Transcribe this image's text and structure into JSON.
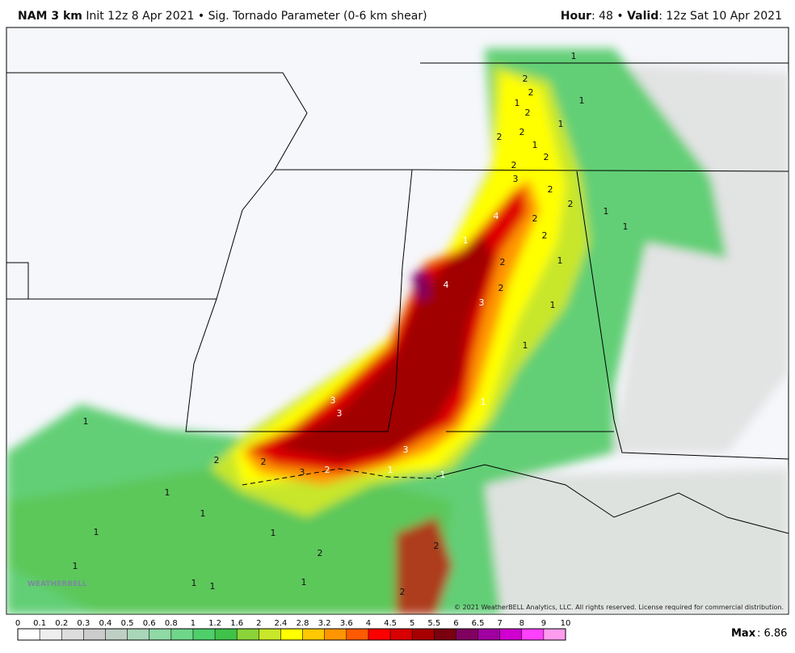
{
  "header": {
    "model": "NAM 3 km",
    "description": "Init 12z 8 Apr 2021 • Sig. Tornado Parameter (0-6 km shear)",
    "hour_label": "Hour",
    "hour_value": ": 48 • ",
    "valid_label": "Valid",
    "valid_value": ": 12z Sat 10 Apr 2021"
  },
  "map": {
    "contour_labels": [
      "1",
      "2",
      "2",
      "1",
      "2",
      "1",
      "1",
      "2",
      "2",
      "1",
      "2",
      "2",
      "3",
      "2",
      "2",
      "2",
      "4",
      "1",
      "1",
      "2",
      "1",
      "2",
      "1",
      "4",
      "2",
      "3",
      "1",
      "1",
      "1",
      "3",
      "3",
      "1",
      "3",
      "2",
      "2",
      "3",
      "2",
      "1",
      "1",
      "1",
      "1",
      "1",
      "1",
      "2",
      "2",
      "1",
      "1",
      "1",
      "1",
      "2"
    ],
    "copyright": "© 2021 WeatherBELL Analytics, LLC. All rights reserved. License required for commercial distribution.",
    "logo": "WEATHERBELL"
  },
  "colorbar": {
    "ticks": [
      0,
      0.1,
      0.2,
      0.3,
      0.4,
      0.5,
      0.6,
      0.8,
      1,
      1.2,
      1.6,
      2,
      2.4,
      2.8,
      3.2,
      3.6,
      4,
      4.5,
      5,
      5.5,
      6,
      6.5,
      7,
      8,
      9,
      10
    ],
    "colors": [
      "#ffffff",
      "#eeeeee",
      "#dddddd",
      "#cccccc",
      "#bfcfc4",
      "#a9d6b8",
      "#8fd9a5",
      "#6fd68a",
      "#4fcf6a",
      "#3fc24a",
      "#8ad43a",
      "#c8e62a",
      "#ffff00",
      "#ffc800",
      "#ff9600",
      "#ff5a00",
      "#ff0000",
      "#d80000",
      "#a80000",
      "#7a0010",
      "#800060",
      "#a000a0",
      "#d000d0",
      "#ff40ff",
      "#ff9cf0"
    ],
    "max_label": "Max",
    "max_value": ": 6.86"
  }
}
